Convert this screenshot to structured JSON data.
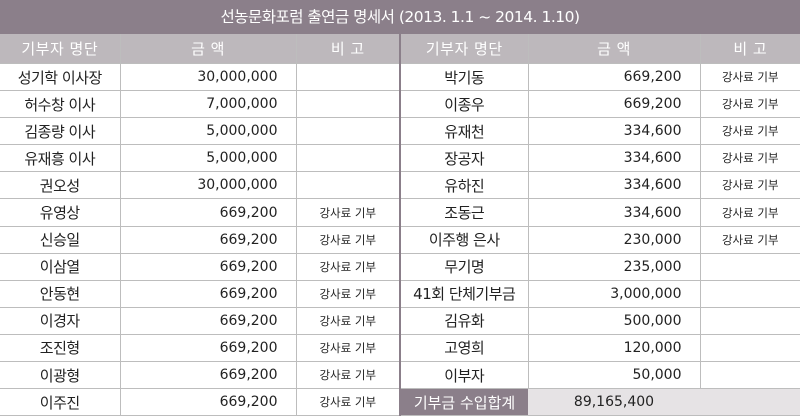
{
  "title": "선농문화포럼 출연금 명세서 (2013. 1.1 ~ 2014. 1.10)",
  "headers": [
    "기부자 명단",
    "금 액",
    "비 고",
    "기부자 명단",
    "금 액",
    "비 고"
  ],
  "left": [
    {
      "name": "성기학 이사장",
      "amount": "30,000,000",
      "note": ""
    },
    {
      "name": "허수창 이사",
      "amount": "7,000,000",
      "note": ""
    },
    {
      "name": "김종량 이사",
      "amount": "5,000,000",
      "note": ""
    },
    {
      "name": "유재흥 이사",
      "amount": "5,000,000",
      "note": ""
    },
    {
      "name": "권오성",
      "amount": "30,000,000",
      "note": ""
    },
    {
      "name": "유영상",
      "amount": "669,200",
      "note": "강사료 기부"
    },
    {
      "name": "신승일",
      "amount": "669,200",
      "note": "강사료 기부"
    },
    {
      "name": "이삼열",
      "amount": "669,200",
      "note": "강사료 기부"
    },
    {
      "name": "안동현",
      "amount": "669,200",
      "note": "강사료 기부"
    },
    {
      "name": "이경자",
      "amount": "669,200",
      "note": "강사료 기부"
    },
    {
      "name": "조진형",
      "amount": "669,200",
      "note": "강사료 기부"
    },
    {
      "name": "이광형",
      "amount": "669,200",
      "note": "강사료 기부"
    },
    {
      "name": "이주진",
      "amount": "669,200",
      "note": "강사료 기부"
    }
  ],
  "right": [
    {
      "name": "박기동",
      "amount": "669,200",
      "note": "강사료 기부"
    },
    {
      "name": "이종우",
      "amount": "669,200",
      "note": "강사료 기부"
    },
    {
      "name": "유재천",
      "amount": "334,600",
      "note": "강사료 기부"
    },
    {
      "name": "장공자",
      "amount": "334,600",
      "note": "강사료 기부"
    },
    {
      "name": "유하진",
      "amount": "334,600",
      "note": "강사료 기부"
    },
    {
      "name": "조동근",
      "amount": "334,600",
      "note": "강사료 기부"
    },
    {
      "name": "이주행 은사",
      "amount": "230,000",
      "note": "강사료 기부"
    },
    {
      "name": "무기명",
      "amount": "235,000",
      "note": ""
    },
    {
      "name": "41회 단체기부금",
      "amount": "3,000,000",
      "note": ""
    },
    {
      "name": "김유화",
      "amount": "500,000",
      "note": ""
    },
    {
      "name": "고영희",
      "amount": "120,000",
      "note": ""
    },
    {
      "name": "이부자",
      "amount": "50,000",
      "note": ""
    }
  ],
  "total": {
    "label": "기부금 수입합계",
    "amount": "89,165,400"
  }
}
